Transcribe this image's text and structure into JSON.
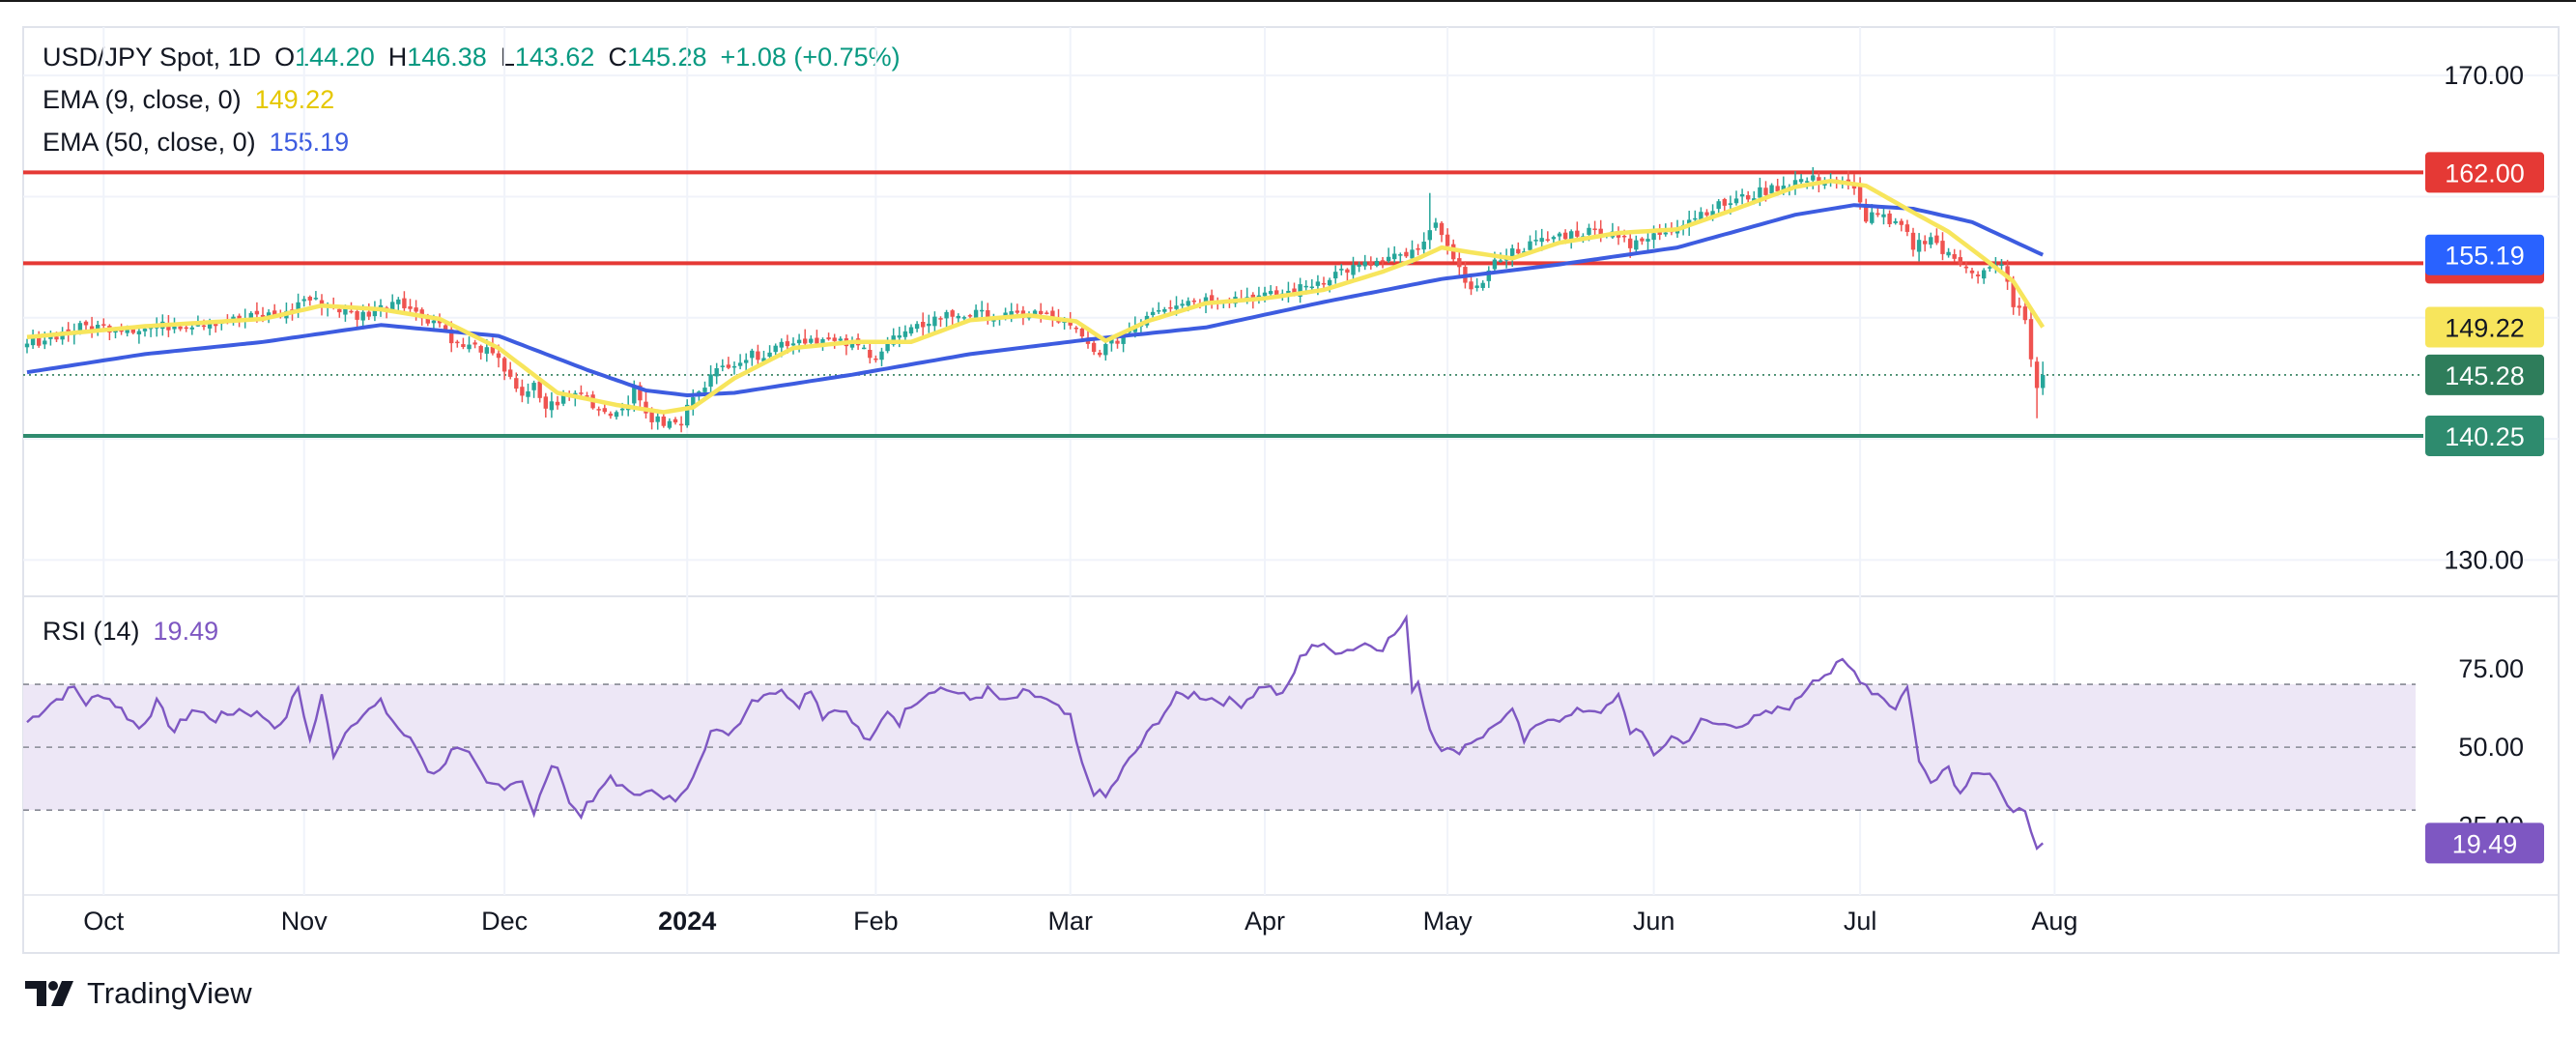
{
  "legend": {
    "symbol": "USD/JPY Spot, 1D",
    "open_label": "O",
    "open": "144.20",
    "high_label": "H",
    "high": "146.38",
    "low_label": "L",
    "low": "143.62",
    "close_label": "C",
    "close": "145.28",
    "change": "+1.08 (+0.75%)",
    "ema9_label": "EMA (9, close, 0)",
    "ema9_value": "149.22",
    "ema50_label": "EMA (50, close, 0)",
    "ema50_value": "155.19",
    "rsi_label": "RSI (14)",
    "rsi_value": "19.49"
  },
  "brand": {
    "name": "TradingView"
  },
  "colors": {
    "up": "#26a69a",
    "down": "#ef5350",
    "ema9": "#f7e55c",
    "ema50": "#3d5ce0",
    "level_red": "#e53935",
    "level_green": "#2e8b6e",
    "rsi_line": "#7e57c2",
    "rsi_band": "#ede7f6",
    "price_tag_green": "#2e7d5b",
    "ema50_tag": "#2962ff"
  },
  "chart_data": [
    {
      "type": "candlestick",
      "title": "USD/JPY Spot, 1D",
      "ylim": [
        127,
        174
      ],
      "y_ticks": [
        "170.00",
        "130.00"
      ],
      "x_ticks": [
        "Oct",
        "Nov",
        "Dec",
        "2024",
        "Feb",
        "Mar",
        "Apr",
        "May",
        "Jun",
        "Jul",
        "Aug"
      ],
      "x_tick_index": [
        13,
        47,
        81,
        112,
        144,
        177,
        210,
        241,
        276,
        311,
        344
      ],
      "horizontal_levels": [
        {
          "value": 162.0,
          "label": "162.00",
          "color": "#e53935"
        },
        {
          "value": 154.5,
          "label": "154.50",
          "color": "#e53935"
        },
        {
          "value": 140.25,
          "label": "140.25",
          "color": "#2e8b6e"
        }
      ],
      "last_price": {
        "value": 145.28,
        "label": "145.28"
      },
      "ema_tags": [
        {
          "value": 149.22,
          "label": "149.22"
        },
        {
          "value": 155.19,
          "label": "155.19"
        }
      ],
      "close_anchors": [
        [
          0,
          147.8
        ],
        [
          5,
          148.6
        ],
        [
          10,
          149.3
        ],
        [
          15,
          149.2
        ],
        [
          20,
          149.1
        ],
        [
          25,
          149.4
        ],
        [
          30,
          149.6
        ],
        [
          35,
          149.8
        ],
        [
          40,
          150.2
        ],
        [
          44,
          150.3
        ],
        [
          47,
          151.6
        ],
        [
          52,
          150.9
        ],
        [
          56,
          150.1
        ],
        [
          60,
          150.8
        ],
        [
          63,
          151.7
        ],
        [
          66,
          150.3
        ],
        [
          70,
          149.6
        ],
        [
          73,
          147.7
        ],
        [
          77,
          147.5
        ],
        [
          79,
          146.8
        ],
        [
          82,
          145.3
        ],
        [
          84,
          143.2
        ],
        [
          86,
          144.3
        ],
        [
          88,
          142.6
        ],
        [
          91,
          143.3
        ],
        [
          94,
          143.9
        ],
        [
          97,
          142.4
        ],
        [
          100,
          142.2
        ],
        [
          103,
          143.8
        ],
        [
          106,
          141.6
        ],
        [
          108,
          141.3
        ],
        [
          111,
          141.2
        ],
        [
          113,
          143.8
        ],
        [
          116,
          145.1
        ],
        [
          119,
          146.3
        ],
        [
          122,
          146.7
        ],
        [
          125,
          147.1
        ],
        [
          128,
          147.9
        ],
        [
          131,
          148.2
        ],
        [
          134,
          148.3
        ],
        [
          137,
          147.9
        ],
        [
          140,
          147.8
        ],
        [
          144,
          146.9
        ],
        [
          147,
          148.3
        ],
        [
          150,
          148.8
        ],
        [
          153,
          149.8
        ],
        [
          156,
          150.2
        ],
        [
          160,
          150.3
        ],
        [
          163,
          150.2
        ],
        [
          167,
          150.1
        ],
        [
          171,
          150.4
        ],
        [
          175,
          149.8
        ],
        [
          178,
          148.8
        ],
        [
          181,
          147.1
        ],
        [
          184,
          147.8
        ],
        [
          187,
          149.0
        ],
        [
          191,
          150.7
        ],
        [
          195,
          151.3
        ],
        [
          199,
          151.5
        ],
        [
          203,
          151.6
        ],
        [
          207,
          151.7
        ],
        [
          211,
          151.8
        ],
        [
          215,
          152.2
        ],
        [
          219,
          153.0
        ],
        [
          223,
          153.9
        ],
        [
          227,
          154.3
        ],
        [
          231,
          154.8
        ],
        [
          236,
          155.4
        ],
        [
          238,
          156.8
        ],
        [
          239,
          158.3
        ],
        [
          240,
          157.2
        ],
        [
          242,
          154.4
        ],
        [
          244,
          153.1
        ],
        [
          246,
          152.4
        ],
        [
          250,
          155.1
        ],
        [
          255,
          156.0
        ],
        [
          260,
          156.8
        ],
        [
          266,
          157.2
        ],
        [
          271,
          156.9
        ],
        [
          272,
          155.8
        ],
        [
          275,
          156.5
        ],
        [
          280,
          157.7
        ],
        [
          285,
          158.9
        ],
        [
          290,
          159.7
        ],
        [
          295,
          160.5
        ],
        [
          300,
          161.3
        ],
        [
          304,
          161.4
        ],
        [
          307,
          161.3
        ],
        [
          310,
          160.4
        ],
        [
          312,
          158.3
        ],
        [
          314,
          158.7
        ],
        [
          316,
          157.6
        ],
        [
          318,
          157.5
        ],
        [
          320,
          155.9
        ],
        [
          323,
          156.8
        ],
        [
          325,
          155.4
        ],
        [
          327,
          154.8
        ],
        [
          329,
          154.4
        ],
        [
          331,
          153.6
        ],
        [
          333,
          154.0
        ],
        [
          335,
          154.2
        ],
        [
          336,
          152.8
        ],
        [
          337,
          151.2
        ],
        [
          339,
          149.8
        ],
        [
          340,
          146.3
        ],
        [
          341,
          144.2
        ],
        [
          342,
          145.28
        ]
      ],
      "ema9_anchors": [
        [
          0,
          148.4
        ],
        [
          20,
          149.3
        ],
        [
          40,
          149.9
        ],
        [
          50,
          151.0
        ],
        [
          60,
          150.7
        ],
        [
          70,
          149.9
        ],
        [
          80,
          147.5
        ],
        [
          90,
          143.8
        ],
        [
          100,
          142.8
        ],
        [
          108,
          142.2
        ],
        [
          113,
          142.6
        ],
        [
          120,
          145.0
        ],
        [
          130,
          147.5
        ],
        [
          140,
          148.0
        ],
        [
          150,
          148.0
        ],
        [
          160,
          149.8
        ],
        [
          170,
          150.2
        ],
        [
          178,
          149.7
        ],
        [
          183,
          148.1
        ],
        [
          190,
          149.7
        ],
        [
          200,
          151.2
        ],
        [
          210,
          151.6
        ],
        [
          220,
          152.3
        ],
        [
          230,
          153.8
        ],
        [
          236,
          154.9
        ],
        [
          240,
          155.8
        ],
        [
          245,
          155.4
        ],
        [
          252,
          154.9
        ],
        [
          260,
          156.2
        ],
        [
          270,
          157.0
        ],
        [
          280,
          157.3
        ],
        [
          290,
          159.0
        ],
        [
          300,
          160.8
        ],
        [
          306,
          161.3
        ],
        [
          312,
          160.9
        ],
        [
          320,
          158.7
        ],
        [
          326,
          157.1
        ],
        [
          332,
          154.9
        ],
        [
          337,
          153.0
        ],
        [
          342,
          149.22
        ]
      ],
      "ema50_anchors": [
        [
          0,
          145.5
        ],
        [
          20,
          147.0
        ],
        [
          40,
          148.0
        ],
        [
          60,
          149.4
        ],
        [
          80,
          148.5
        ],
        [
          95,
          145.7
        ],
        [
          105,
          144.0
        ],
        [
          112,
          143.6
        ],
        [
          120,
          143.8
        ],
        [
          140,
          145.3
        ],
        [
          160,
          147.0
        ],
        [
          180,
          148.2
        ],
        [
          200,
          149.2
        ],
        [
          220,
          151.3
        ],
        [
          240,
          153.2
        ],
        [
          260,
          154.4
        ],
        [
          280,
          155.8
        ],
        [
          300,
          158.5
        ],
        [
          310,
          159.3
        ],
        [
          320,
          159.0
        ],
        [
          330,
          157.9
        ],
        [
          342,
          155.19
        ]
      ]
    },
    {
      "type": "line",
      "title": "RSI (14)",
      "ylim": [
        3,
        98
      ],
      "y_ticks": [
        "75.00",
        "50.00",
        "25.00"
      ],
      "band": [
        30,
        70
      ],
      "mid_line": 50,
      "last_value": {
        "value": 19.49,
        "label": "19.49"
      },
      "rsi_anchors": [
        [
          0,
          58
        ],
        [
          4,
          64
        ],
        [
          8,
          69
        ],
        [
          10,
          64
        ],
        [
          13,
          67
        ],
        [
          16,
          62
        ],
        [
          19,
          56
        ],
        [
          22,
          64
        ],
        [
          25,
          55
        ],
        [
          28,
          62
        ],
        [
          32,
          59
        ],
        [
          36,
          62
        ],
        [
          40,
          60
        ],
        [
          43,
          56
        ],
        [
          46,
          69
        ],
        [
          48,
          52
        ],
        [
          50,
          66
        ],
        [
          52,
          48
        ],
        [
          55,
          58
        ],
        [
          60,
          64
        ],
        [
          63,
          56
        ],
        [
          66,
          50
        ],
        [
          68,
          43
        ],
        [
          70,
          42
        ],
        [
          72,
          50
        ],
        [
          75,
          47
        ],
        [
          78,
          38
        ],
        [
          81,
          38
        ],
        [
          84,
          40
        ],
        [
          86,
          28
        ],
        [
          88,
          40
        ],
        [
          90,
          45
        ],
        [
          92,
          32
        ],
        [
          94,
          29
        ],
        [
          97,
          35
        ],
        [
          99,
          41
        ],
        [
          102,
          35
        ],
        [
          105,
          37
        ],
        [
          108,
          33
        ],
        [
          111,
          34
        ],
        [
          113,
          42
        ],
        [
          116,
          55
        ],
        [
          118,
          54
        ],
        [
          120,
          56
        ],
        [
          123,
          65
        ],
        [
          126,
          68
        ],
        [
          129,
          67
        ],
        [
          131,
          64
        ],
        [
          133,
          69
        ],
        [
          135,
          60
        ],
        [
          138,
          63
        ],
        [
          140,
          58
        ],
        [
          143,
          51
        ],
        [
          146,
          62
        ],
        [
          148,
          58
        ],
        [
          150,
          64
        ],
        [
          154,
          69
        ],
        [
          157,
          68
        ],
        [
          160,
          65
        ],
        [
          163,
          68
        ],
        [
          166,
          64
        ],
        [
          169,
          67
        ],
        [
          172,
          66
        ],
        [
          175,
          62
        ],
        [
          177,
          59
        ],
        [
          179,
          44
        ],
        [
          181,
          36
        ],
        [
          183,
          34
        ],
        [
          186,
          43
        ],
        [
          189,
          51
        ],
        [
          192,
          59
        ],
        [
          195,
          66
        ],
        [
          198,
          67
        ],
        [
          202,
          65
        ],
        [
          206,
          64
        ],
        [
          210,
          70
        ],
        [
          213,
          66
        ],
        [
          216,
          78
        ],
        [
          218,
          83
        ],
        [
          221,
          81
        ],
        [
          224,
          81
        ],
        [
          227,
          83
        ],
        [
          230,
          82
        ],
        [
          232,
          86
        ],
        [
          234,
          90
        ],
        [
          235,
          69
        ],
        [
          236,
          71
        ],
        [
          238,
          56
        ],
        [
          240,
          50
        ],
        [
          242,
          48
        ],
        [
          245,
          52
        ],
        [
          248,
          55
        ],
        [
          250,
          59
        ],
        [
          252,
          61
        ],
        [
          254,
          52
        ],
        [
          256,
          56
        ],
        [
          258,
          60
        ],
        [
          261,
          59
        ],
        [
          264,
          62
        ],
        [
          268,
          62
        ],
        [
          270,
          66
        ],
        [
          272,
          55
        ],
        [
          274,
          56
        ],
        [
          276,
          46
        ],
        [
          279,
          54
        ],
        [
          281,
          51
        ],
        [
          284,
          58
        ],
        [
          288,
          57
        ],
        [
          292,
          58
        ],
        [
          296,
          61
        ],
        [
          300,
          64
        ],
        [
          303,
          72
        ],
        [
          306,
          74
        ],
        [
          308,
          77
        ],
        [
          310,
          74
        ],
        [
          313,
          68
        ],
        [
          315,
          66
        ],
        [
          317,
          62
        ],
        [
          319,
          70
        ],
        [
          321,
          45
        ],
        [
          323,
          40
        ],
        [
          326,
          44
        ],
        [
          328,
          35
        ],
        [
          330,
          43
        ],
        [
          333,
          41
        ],
        [
          335,
          34
        ],
        [
          337,
          31
        ],
        [
          339,
          28
        ],
        [
          340,
          22
        ],
        [
          341,
          17
        ],
        [
          342,
          19.49
        ]
      ]
    }
  ]
}
